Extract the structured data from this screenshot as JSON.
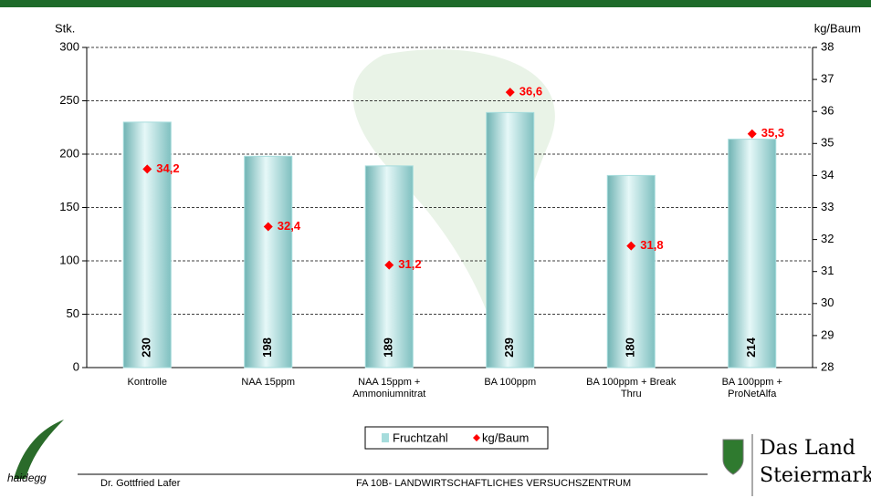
{
  "chart_data": {
    "type": "bar-line",
    "ylabel": "Stk.",
    "y2label": "kg/Baum",
    "categories": [
      "Kontrolle",
      "NAA 15ppm",
      "NAA 15ppm + Ammoniumnitrat",
      "BA 100ppm",
      "BA 100ppm + Break Thru",
      "BA 100ppm + ProNetAlfa"
    ],
    "series": [
      {
        "name": "Fruchtzahl",
        "color": "#a6dcdc",
        "values": [
          230,
          198,
          189,
          239,
          180,
          214
        ]
      },
      {
        "name": "kg/Baum",
        "color": "#ff0000",
        "axis": "y2",
        "values": [
          34.2,
          32.4,
          31.2,
          36.6,
          31.8,
          35.3
        ],
        "value_labels": [
          "34,2",
          "32,4",
          "31,2",
          "36,6",
          "31,8",
          "35,3"
        ]
      }
    ],
    "ylim": [
      0,
      300
    ],
    "yticks": [
      0,
      50,
      100,
      150,
      200,
      250,
      300
    ],
    "y2lim": [
      28,
      38
    ],
    "y2ticks": [
      28,
      29,
      30,
      31,
      32,
      33,
      34,
      35,
      36,
      37,
      38
    ],
    "grid": true,
    "legend": "bottom"
  },
  "footer": {
    "author": "Dr. Gottfried Lafer",
    "institution": "FA 10B- LANDWIRTSCHAFTLICHES VERSUCHSZENTRUM",
    "logo_left": "haidegg",
    "logo_right_1": "Das Land",
    "logo_right_2": "Steiermark"
  }
}
